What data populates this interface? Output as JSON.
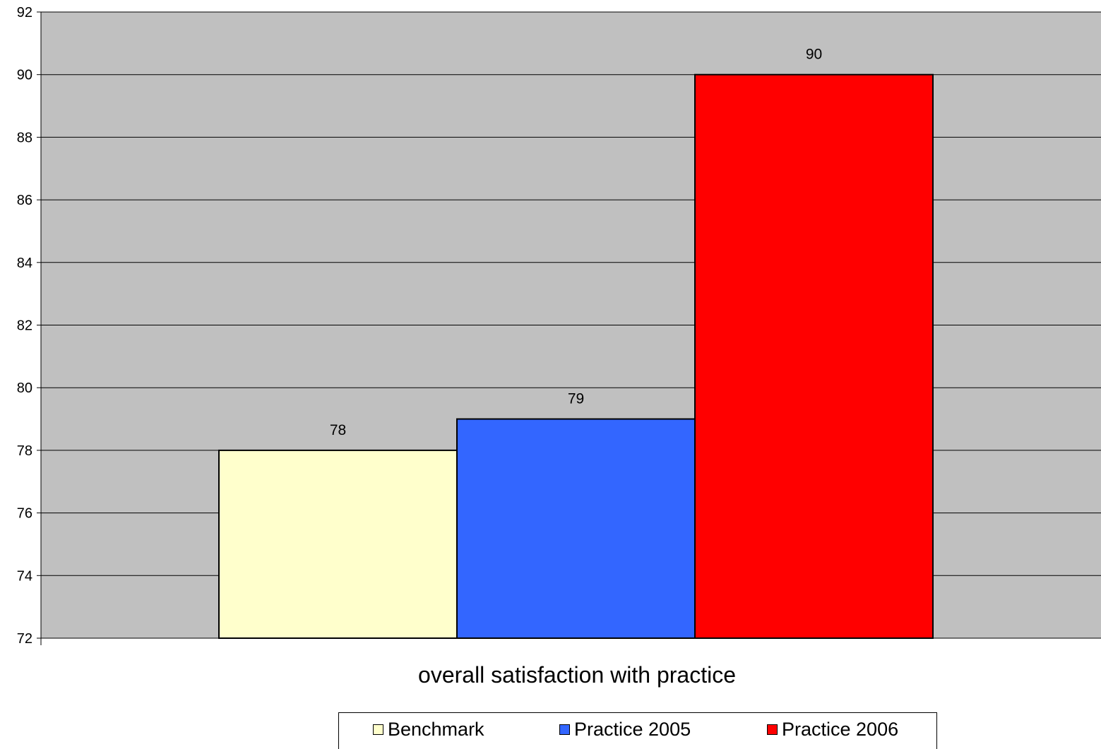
{
  "chart_data": {
    "type": "bar",
    "xlabel": "overall satisfaction with practice",
    "ylabel": "",
    "title": "",
    "ylim": [
      72,
      92
    ],
    "yticks": [
      "72",
      "74",
      "76",
      "78",
      "80",
      "82",
      "84",
      "86",
      "88",
      "90",
      "92"
    ],
    "grid": true,
    "legend_position": "bottom",
    "background_color": "#c0c0c0",
    "series": [
      {
        "name": "Benchmark",
        "value": 78,
        "label": "78",
        "color": "#ffffcc"
      },
      {
        "name": "Practice 2005",
        "value": 79,
        "label": "79",
        "color": "#3366ff"
      },
      {
        "name": "Practice 2006",
        "value": 90,
        "label": "90",
        "color": "#ff0000"
      }
    ]
  }
}
